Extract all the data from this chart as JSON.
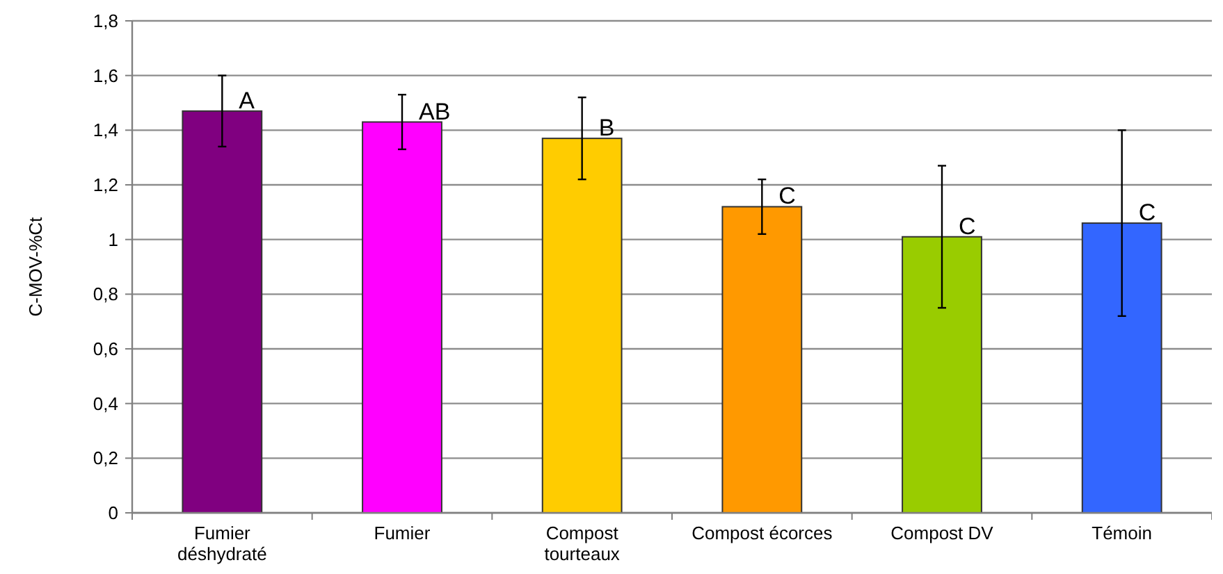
{
  "chart_data": {
    "type": "bar",
    "ylabel": "C-MOV-%Ct",
    "categories": [
      "Fumier déshydraté",
      "Fumier",
      "Compost tourteaux",
      "Compost écorces",
      "Compost DV",
      "Témoin"
    ],
    "values": [
      1.47,
      1.43,
      1.37,
      1.12,
      1.01,
      1.06
    ],
    "errors": [
      0.13,
      0.1,
      0.15,
      0.1,
      0.26,
      0.34
    ],
    "colors": [
      "#800080",
      "#ff00ff",
      "#ffcc00",
      "#ff9900",
      "#99cc00",
      "#3366ff"
    ],
    "ylim": [
      0,
      1.8
    ],
    "yticks": [
      0,
      {
        "value": 0.2,
        "label": "0,2"
      },
      {
        "value": 0.4,
        "label": "0,4"
      },
      {
        "value": 0.6,
        "label": "0,6"
      },
      {
        "value": 0.8,
        "label": "0,8"
      },
      1,
      {
        "value": 1.2,
        "label": "1,2"
      },
      {
        "value": 1.4,
        "label": "1,4"
      },
      {
        "value": 1.6,
        "label": "1,6"
      },
      {
        "value": 1.8,
        "label": "1,8"
      }
    ],
    "grid": "y",
    "annotations": [
      {
        "text": "A",
        "x": "Fumier déshydraté",
        "y": 1.47
      },
      {
        "text": "AB",
        "x": "Fumier",
        "y": 1.43
      },
      {
        "text": "B",
        "x": "Compost tourteaux",
        "y": 1.37
      },
      {
        "text": "C",
        "x": "Compost écorces",
        "y": 1.12
      },
      {
        "text": "C",
        "x": "Compost DV",
        "y": 1.01
      },
      {
        "text": "C",
        "x": "Témoin",
        "y": 1.06
      }
    ]
  }
}
